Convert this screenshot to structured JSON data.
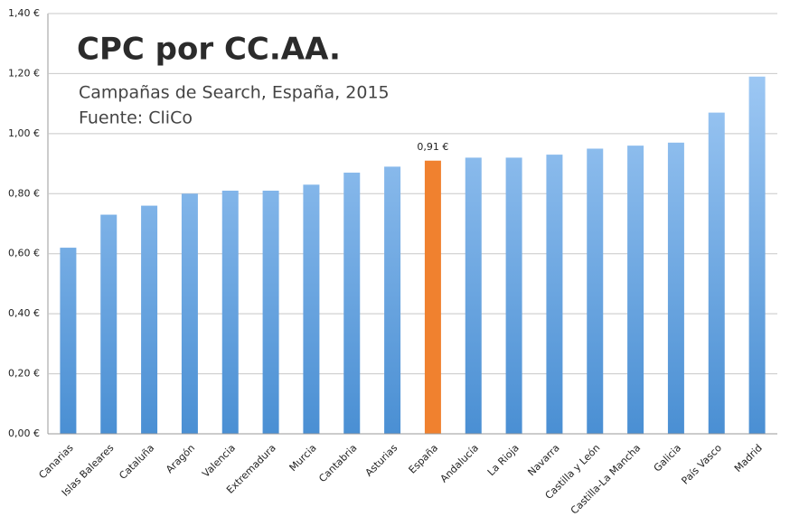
{
  "chart_data": {
    "type": "bar",
    "title": "CPC por CC.AA.",
    "subtitle": [
      "Campañas de Search, España, 2015",
      "Fuente: CliCo"
    ],
    "categories": [
      "Canarias",
      "Islas Baleares",
      "Cataluña",
      "Aragón",
      "Valencia",
      "Extremadura",
      "Murcia",
      "Cantabria",
      "Asturias",
      "España",
      "Andalucía",
      "La Rioja",
      "Navarra",
      "Castilla y León",
      "Castilla-La Mancha",
      "Galicia",
      "País Vasco",
      "Madrid"
    ],
    "values": [
      0.62,
      0.73,
      0.76,
      0.8,
      0.81,
      0.81,
      0.83,
      0.87,
      0.89,
      0.91,
      0.92,
      0.92,
      0.93,
      0.95,
      0.96,
      0.97,
      1.07,
      1.19
    ],
    "value_labels": [
      null,
      null,
      null,
      null,
      null,
      null,
      null,
      null,
      null,
      "0,91 €",
      null,
      null,
      null,
      null,
      null,
      null,
      null,
      null
    ],
    "colors": [
      [
        "#abd1f9",
        "#4a8fd3"
      ],
      [
        "#abd1f9",
        "#4a8fd3"
      ],
      [
        "#abd1f9",
        "#4a8fd3"
      ],
      [
        "#abd1f9",
        "#4a8fd3"
      ],
      [
        "#abd1f9",
        "#4a8fd3"
      ],
      [
        "#abd1f9",
        "#4a8fd3"
      ],
      [
        "#abd1f9",
        "#4a8fd3"
      ],
      [
        "#abd1f9",
        "#4a8fd3"
      ],
      [
        "#abd1f9",
        "#4a8fd3"
      ],
      "#f0812f",
      [
        "#abd1f9",
        "#4a8fd3"
      ],
      [
        "#abd1f9",
        "#4a8fd3"
      ],
      [
        "#abd1f9",
        "#4a8fd3"
      ],
      [
        "#abd1f9",
        "#4a8fd3"
      ],
      [
        "#abd1f9",
        "#4a8fd3"
      ],
      [
        "#abd1f9",
        "#4a8fd3"
      ],
      [
        "#abd1f9",
        "#4a8fd3"
      ],
      [
        "#abd1f9",
        "#4a8fd3"
      ]
    ],
    "ylim": [
      0,
      1.4
    ],
    "yticks": [
      {
        "value": 0,
        "label": "0,00 €"
      },
      {
        "value": 0.2,
        "label": "0,20 €"
      },
      {
        "value": 0.4,
        "label": "0,40 €"
      },
      {
        "value": 0.6,
        "label": "0,60 €"
      },
      {
        "value": 0.8,
        "label": "0,80 €"
      },
      {
        "value": 1.0,
        "label": "1,00 €"
      },
      {
        "value": 1.2,
        "label": "1,20 €"
      },
      {
        "value": 1.4,
        "label": "1,40 €"
      }
    ],
    "grid": true
  }
}
